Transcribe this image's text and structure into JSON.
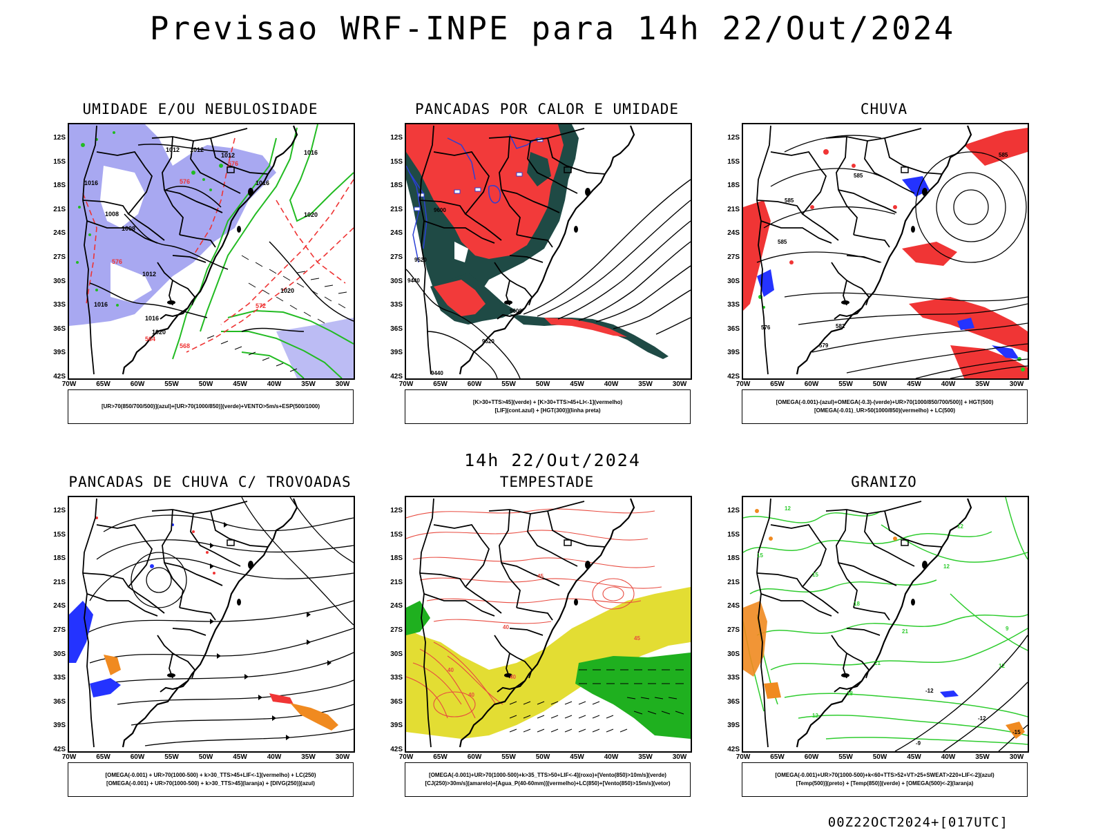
{
  "header": {
    "title": "Previsao WRF-INPE  para 14h 22/Out/2024",
    "subtitle": "14h 22/Out/2024",
    "footer": "00Z22OCT2024+[017UTC]"
  },
  "axes": {
    "lat_labels": [
      "12S",
      "15S",
      "18S",
      "21S",
      "24S",
      "27S",
      "30S",
      "33S",
      "36S",
      "39S",
      "42S"
    ],
    "lon_labels": [
      "70W",
      "65W",
      "60W",
      "55W",
      "50W",
      "45W",
      "40W",
      "35W",
      "30W"
    ]
  },
  "panels": [
    {
      "id": "umidade",
      "title": "UMIDADE E/OU NEBULOSIDADE",
      "legend": [
        "[UR>70(850/700/500)](azul)+[UR>70(1000/850)](verde)+VENTO>5m/s+ESP(500/1000)"
      ],
      "contour_labels": [
        "1012",
        "1012",
        "1012",
        "1016",
        "1016",
        "1016",
        "1008",
        "1008",
        "1020",
        "1020",
        "1020",
        "1012",
        "1016",
        "1016",
        "576",
        "576",
        "576",
        "564",
        "568",
        "572"
      ]
    },
    {
      "id": "pancadas-calor",
      "title": "PANCADAS POR CALOR E UMIDADE",
      "legend": [
        "[K>30+TTS>45](verde) + [K>30+TTS>45+LI<-1](vermelho)",
        "[LIF](cont.azul) + [HGT(300)](linha preta)"
      ],
      "contour_labels": [
        "9600",
        "9600",
        "9520",
        "9440",
        "9520",
        "9440"
      ]
    },
    {
      "id": "chuva",
      "title": "CHUVA",
      "legend": [
        "[OMEGA(-0.001)-(azul)+OMEGA(-0.3)-(verde)+UR>70(1000/850/700/500)] + HGT(500)",
        "[OMEGA(-0.01)_UR>50(1000/850)(vermelho) + LC(500)"
      ],
      "contour_labels": [
        "585",
        "585",
        "585",
        "576",
        "582",
        "579",
        "585"
      ]
    },
    {
      "id": "pancadas-trovoadas",
      "title": "PANCADAS DE CHUVA C/ TROVOADAS",
      "legend": [
        "[OMEGA(-0.001) + UR>70(1000-500) + k>30_TTS>45+LIF<-1](vermelho) + LC(250)",
        "[OMEGA(-0.001) + UR>70(1000-500) + k>30_TTS>45](laranja) + [DIVG(250)](azul)"
      ],
      "contour_labels": []
    },
    {
      "id": "tempestade",
      "title": "TEMPESTADE",
      "legend": [
        "[OMEGA(-0.001)+UR>70(1000-500)+k>35_TTS>50+LIF<-4](roxo)+[Vento(850)>10m/s](verde)",
        "[CJ(250)>30m/s](amarelo)+[Agua_P(40-60mm)](vermelho)+LC(850)+[Vento(850)>15m/s](vetor)"
      ],
      "contour_labels": [
        "40",
        "40",
        "45",
        "45",
        "40",
        "40"
      ]
    },
    {
      "id": "granizo",
      "title": "GRANIZO",
      "legend": [
        "[OMEGA(-0.001)+UR>70(1000-500)+k<60+TTS>52+VT>25+SWEAT>220+LIF<-2](azul)",
        "[Temp(500)](preto) + [Temp(850)](verde) + [OMEGA(500)<-2](laranja)"
      ],
      "contour_labels": [
        "12",
        "12",
        "15",
        "18",
        "21",
        "21",
        "18",
        "12",
        "9",
        "12",
        "-12",
        "-12",
        "-15",
        "-9",
        "12",
        "15"
      ]
    }
  ],
  "colors": {
    "coast": "#000000",
    "umid_blue": "#9999ee",
    "umid_green": "#22bb22",
    "contour_red": "#ee3333",
    "calor_red": "#f23a3a",
    "calor_dark": "#1f4a45",
    "lif_blue": "#2a3fd6",
    "chuva_red": "#f03535",
    "chuva_blue": "#2433ff",
    "chuva_green": "#22cc22",
    "jet_yellow": "#e3dd33",
    "wind_green": "#1fb01f",
    "water_red": "#e84a3f",
    "orange": "#f08a20",
    "temp_green": "#2ecc2e"
  }
}
